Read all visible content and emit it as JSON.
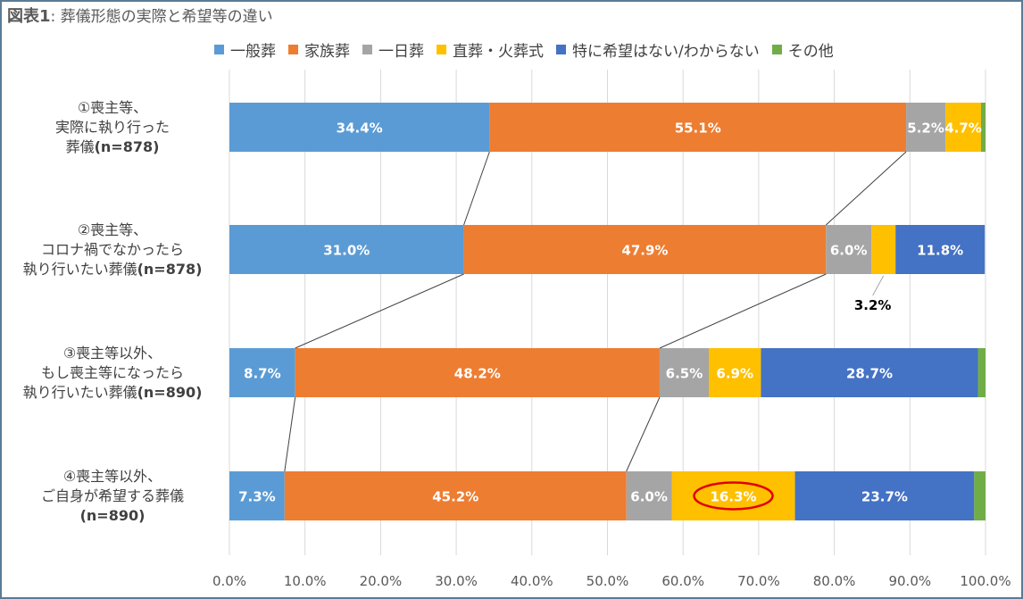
{
  "title": {
    "main": "図表1",
    "sub": ": 葬儀形態の実際と希望等の違い"
  },
  "colors": {
    "一般葬": "#5b9bd5",
    "家族葬": "#ed7d31",
    "一日葬": "#a5a5a5",
    "直葬・火葬式": "#ffc000",
    "特に希望はない/わからない": "#4472c4",
    "その他": "#70ad47",
    "highlight": "#e00000"
  },
  "legend": [
    {
      "name": "一般葬",
      "color": "#5b9bd5"
    },
    {
      "name": "家族葬",
      "color": "#ed7d31"
    },
    {
      "name": "一日葬",
      "color": "#a5a5a5"
    },
    {
      "name": "直葬・火葬式",
      "color": "#ffc000"
    },
    {
      "name": "特に希望はない/わからない",
      "color": "#4472c4"
    },
    {
      "name": "その他",
      "color": "#70ad47"
    }
  ],
  "chart_data": {
    "type": "bar",
    "orientation": "horizontal",
    "stacked": true,
    "title": "図表1: 葬儀形態の実際と希望等の違い",
    "xlim": [
      0,
      100
    ],
    "x_ticks": [
      "0.0%",
      "10.0%",
      "20.0%",
      "30.0%",
      "40.0%",
      "50.0%",
      "60.0%",
      "70.0%",
      "80.0%",
      "90.0%",
      "100.0%"
    ],
    "grid": true,
    "legend_position": "top",
    "categories": [
      {
        "lines": [
          "①喪主等、",
          "実際に執り行った",
          "葬儀(n=878)"
        ]
      },
      {
        "lines": [
          "②喪主等、",
          "コロナ禍でなかったら",
          "執り行いたい葬儀(n=878)"
        ]
      },
      {
        "lines": [
          "③喪主等以外、",
          "もし喪主等になったら",
          "執り行いたい葬儀(n=890)"
        ]
      },
      {
        "lines": [
          "④喪主等以外、",
          "ご自身が希望する葬儀",
          "(n=890)"
        ]
      }
    ],
    "series": [
      {
        "name": "一般葬",
        "values": [
          34.4,
          31.0,
          8.7,
          7.3
        ],
        "labels": [
          "34.4%",
          "31.0%",
          "8.7%",
          "7.3%"
        ]
      },
      {
        "name": "家族葬",
        "values": [
          55.1,
          47.9,
          48.2,
          45.2
        ],
        "labels": [
          "55.1%",
          "47.9%",
          "48.2%",
          "45.2%"
        ]
      },
      {
        "name": "一日葬",
        "values": [
          5.2,
          6.0,
          6.5,
          6.0
        ],
        "labels": [
          "5.2%",
          "6.0%",
          "6.5%",
          "6.0%"
        ]
      },
      {
        "name": "直葬・火葬式",
        "values": [
          4.7,
          3.2,
          6.9,
          16.3
        ],
        "labels": [
          "4.7%",
          "3.2%",
          "6.9%",
          "16.3%"
        ]
      },
      {
        "name": "特に希望はない/わからない",
        "values": [
          0,
          11.8,
          28.7,
          23.7
        ],
        "labels": [
          "",
          "11.8%",
          "28.7%",
          "23.7%"
        ]
      },
      {
        "name": "その他",
        "values": [
          0.6,
          0,
          1.0,
          1.5
        ],
        "labels": [
          "",
          "",
          "",
          ""
        ]
      }
    ],
    "annotations": {
      "highlighted": {
        "series": "直葬・火葬式",
        "category_index": 3,
        "label": "16.3%"
      },
      "series_lines_between_bars": [
        "一般葬",
        "家族葬"
      ]
    }
  }
}
